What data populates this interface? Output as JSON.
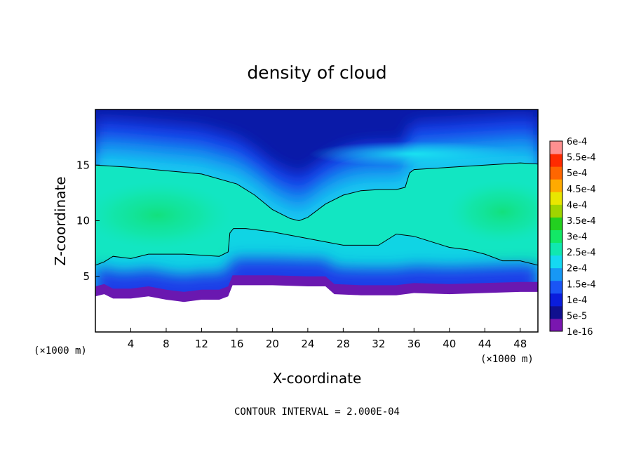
{
  "chart_data": {
    "type": "heatmap",
    "title": "density of cloud",
    "xlabel": "X-coordinate",
    "ylabel": "Z-coordinate",
    "x_unit": "(×1000 m)",
    "y_unit": "(×1000 m)",
    "xlim": [
      0,
      50
    ],
    "ylim": [
      0,
      20
    ],
    "x_ticks": [
      4,
      8,
      12,
      16,
      20,
      24,
      28,
      32,
      36,
      40,
      44,
      48
    ],
    "y_ticks": [
      5,
      10,
      15
    ],
    "footnote": "CONTOUR INTERVAL = 2.000E-04",
    "colorbar": {
      "labels": [
        "1e-16",
        "5e-5",
        "1e-4",
        "1.5e-4",
        "2e-4",
        "2.5e-4",
        "3e-4",
        "3.5e-4",
        "4e-4",
        "4.5e-4",
        "5e-4",
        "5.5e-4",
        "6e-4"
      ],
      "colors": [
        "#7a16b0",
        "#10108f",
        "#0a1ddc",
        "#1a55f5",
        "#1798f5",
        "#15d9f2",
        "#10e8b0",
        "#12e866",
        "#23d020",
        "#9fd400",
        "#e9e600",
        "#ffaa00",
        "#ff6600",
        "#ff2a00",
        "#ff9090"
      ]
    },
    "fields": {
      "cloud_base_x": [
        0,
        1,
        2,
        4,
        6,
        8,
        10,
        12,
        14,
        15,
        15.5,
        20,
        24,
        26,
        27,
        30,
        34,
        36,
        40,
        44,
        48,
        50
      ],
      "cloud_base_z": [
        3.2,
        3.4,
        3.0,
        3.0,
        3.2,
        2.9,
        2.7,
        2.9,
        2.9,
        3.2,
        4.2,
        4.2,
        4.1,
        4.1,
        3.4,
        3.3,
        3.3,
        3.5,
        3.4,
        3.5,
        3.6,
        3.6
      ],
      "lower_contour_x": [
        0,
        1,
        2,
        4,
        6,
        8,
        10,
        12,
        14,
        15,
        15.2,
        15.6,
        17,
        20,
        24,
        26,
        28,
        32,
        34,
        36,
        40,
        42,
        44,
        46,
        48,
        50
      ],
      "lower_contour_z": [
        6.0,
        6.3,
        6.8,
        6.6,
        7.0,
        7.0,
        7.0,
        6.9,
        6.8,
        7.2,
        8.9,
        9.3,
        9.3,
        9.0,
        8.4,
        8.1,
        7.8,
        7.8,
        8.8,
        8.6,
        7.6,
        7.4,
        7.0,
        6.4,
        6.4,
        6.0
      ],
      "upper_contour_x": [
        0,
        4,
        8,
        12,
        16,
        18,
        20,
        22,
        23,
        24,
        26,
        28,
        30,
        32,
        34,
        35,
        35.5,
        36,
        40,
        44,
        48,
        50
      ],
      "upper_contour_z": [
        15.0,
        14.8,
        14.5,
        14.2,
        13.3,
        12.3,
        11.0,
        10.2,
        10.0,
        10.3,
        11.5,
        12.3,
        12.7,
        12.8,
        12.8,
        13.0,
        14.3,
        14.6,
        14.8,
        15.0,
        15.2,
        15.1
      ],
      "core_centers": [
        {
          "x": 7,
          "z": 10.5
        },
        {
          "x": 46,
          "z": 10.8
        },
        {
          "x": 36,
          "z": 16
        }
      ]
    }
  }
}
